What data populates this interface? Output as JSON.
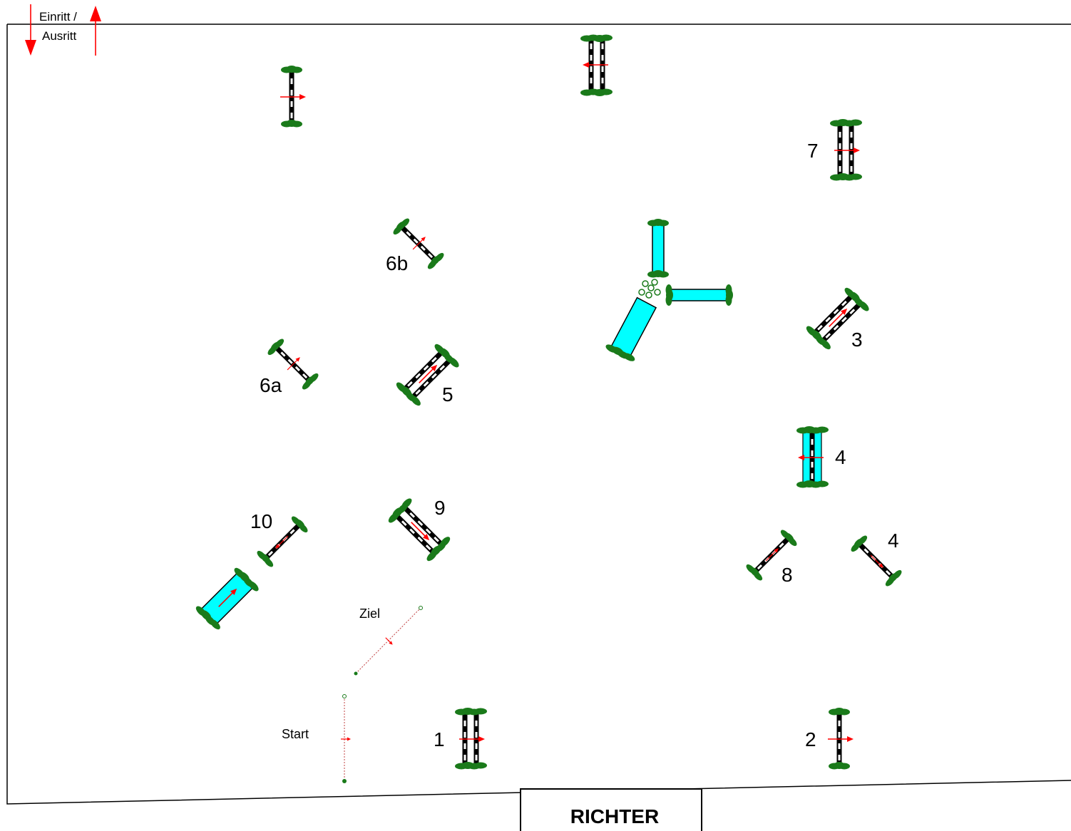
{
  "entrance": {
    "line1": "Einritt /",
    "line2": "Ausritt"
  },
  "judge": {
    "label": "RICHTER"
  },
  "start": {
    "label": "Start"
  },
  "finish": {
    "label": "Ziel"
  },
  "obstacles": [
    {
      "id": "1",
      "label": "1",
      "kind": "oxer"
    },
    {
      "id": "2",
      "label": "2",
      "kind": "vertical"
    },
    {
      "id": "3",
      "label": "3",
      "kind": "oxer"
    },
    {
      "id": "4a",
      "label": "4",
      "kind": "water-oxer"
    },
    {
      "id": "4b",
      "label": "4",
      "kind": "vertical"
    },
    {
      "id": "5",
      "label": "5",
      "kind": "oxer"
    },
    {
      "id": "6a",
      "label": "6a",
      "kind": "vertical"
    },
    {
      "id": "6b",
      "label": "6b",
      "kind": "vertical"
    },
    {
      "id": "7",
      "label": "7",
      "kind": "oxer"
    },
    {
      "id": "8",
      "label": "8",
      "kind": "vertical"
    },
    {
      "id": "9",
      "label": "9",
      "kind": "oxer"
    },
    {
      "id": "10",
      "label": "10",
      "kind": "vertical"
    },
    {
      "id": "u1",
      "label": "",
      "kind": "vertical"
    },
    {
      "id": "u2",
      "label": "",
      "kind": "oxer"
    },
    {
      "id": "u3",
      "label": "",
      "kind": "water"
    }
  ],
  "colors": {
    "arena_line": "#000000",
    "arrow": "#ff0000",
    "water": "#00ffff",
    "hedge": "#1a7a1a",
    "pole_dark": "#000000",
    "pole_light": "#ffffff"
  }
}
